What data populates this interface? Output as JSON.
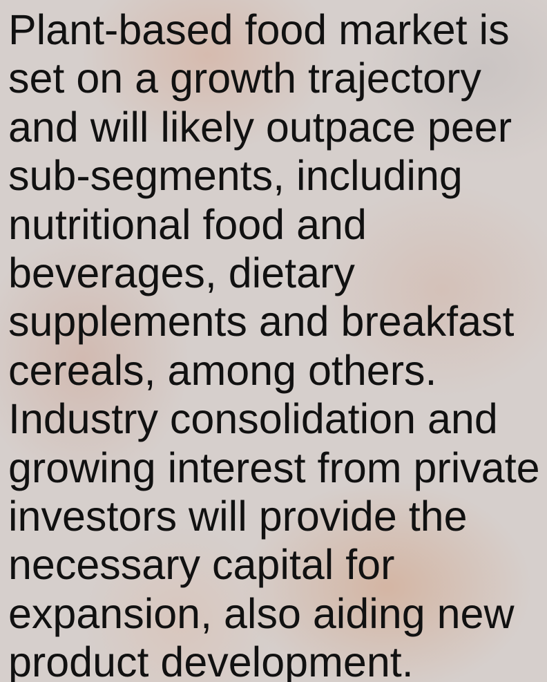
{
  "body": {
    "lines": [
      "Plant-based food market is",
      "set on a growth trajectory",
      "and will likely outpace peer",
      "sub-segments, including",
      "nutritional food and",
      "beverages, dietary",
      "supplements and breakfast",
      "cereals, among others.",
      "Industry consolidation and",
      "growing interest from private",
      "investors will provide the",
      "necessary capital for",
      "expansion, also aiding new",
      "product development."
    ]
  }
}
